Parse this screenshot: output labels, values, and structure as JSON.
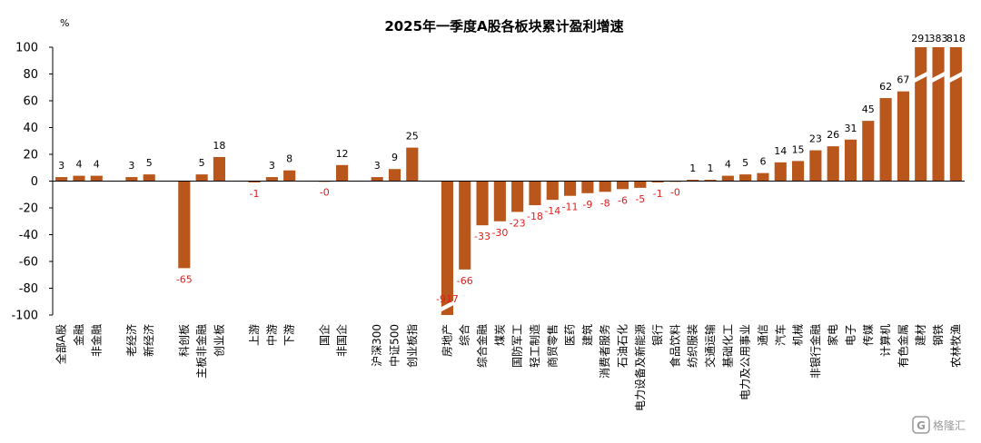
{
  "chart_data": {
    "type": "bar",
    "title": "2025年一季度A股各板块累计盈利增速",
    "unit_label": "%",
    "ylim": [
      -100,
      100
    ],
    "yticks": [
      100,
      80,
      60,
      40,
      20,
      0,
      -20,
      -40,
      -60,
      -80,
      -100
    ],
    "grid": false,
    "legend": "none",
    "categories": [
      "全部A股",
      "金融",
      "非金融",
      "",
      "老经济",
      "新经济",
      "",
      "科创板",
      "主板非金融",
      "创业板",
      "",
      "上游",
      "中游",
      "下游",
      "",
      "国企",
      "非国企",
      "",
      "沪深300",
      "中证500",
      "创业板指",
      "",
      "房地产",
      "综合",
      "综合金融",
      "煤炭",
      "国防军工",
      "轻工制造",
      "商贸零售",
      "医药",
      "建筑",
      "消费者服务",
      "石油石化",
      "电力设备及新能源",
      "银行",
      "食品饮料",
      "纺织服装",
      "交通运输",
      "基础化工",
      "电力及公用事业",
      "通信",
      "汽车",
      "机械",
      "非银行金融",
      "家电",
      "电子",
      "传媒",
      "计算机",
      "有色金属",
      "建材",
      "钢铁",
      "农林牧渔"
    ],
    "values": [
      3,
      4,
      4,
      null,
      3,
      5,
      null,
      -65,
      5,
      18,
      null,
      -1,
      3,
      8,
      null,
      0,
      12,
      null,
      3,
      9,
      25,
      null,
      -917,
      -66,
      -33,
      -30,
      -23,
      -18,
      -14,
      -11,
      -9,
      -8,
      -6,
      -5,
      -1,
      0,
      1,
      1,
      4,
      5,
      6,
      14,
      15,
      23,
      26,
      31,
      45,
      62,
      67,
      291,
      383,
      818
    ],
    "value_labels": [
      "3",
      "4",
      "4",
      "",
      "3",
      "5",
      "",
      "-65",
      "5",
      "18",
      "",
      "-1",
      "3",
      "8",
      "",
      "-0",
      "12",
      "",
      "3",
      "9",
      "25",
      "",
      "-917",
      "-66",
      "-33",
      "-30",
      "-23",
      "-18",
      "-14",
      "-11",
      "-9",
      "-8",
      "-6",
      "-5",
      "-1",
      "-0",
      "1",
      "1",
      "4",
      "5",
      "6",
      "14",
      "15",
      "23",
      "26",
      "31",
      "45",
      "62",
      "67",
      "291",
      "383",
      "818"
    ],
    "bar_color": "#b8561b",
    "negative_label_color": "#e02020",
    "positive_label_color": "#000000"
  },
  "watermark": "格隆汇"
}
